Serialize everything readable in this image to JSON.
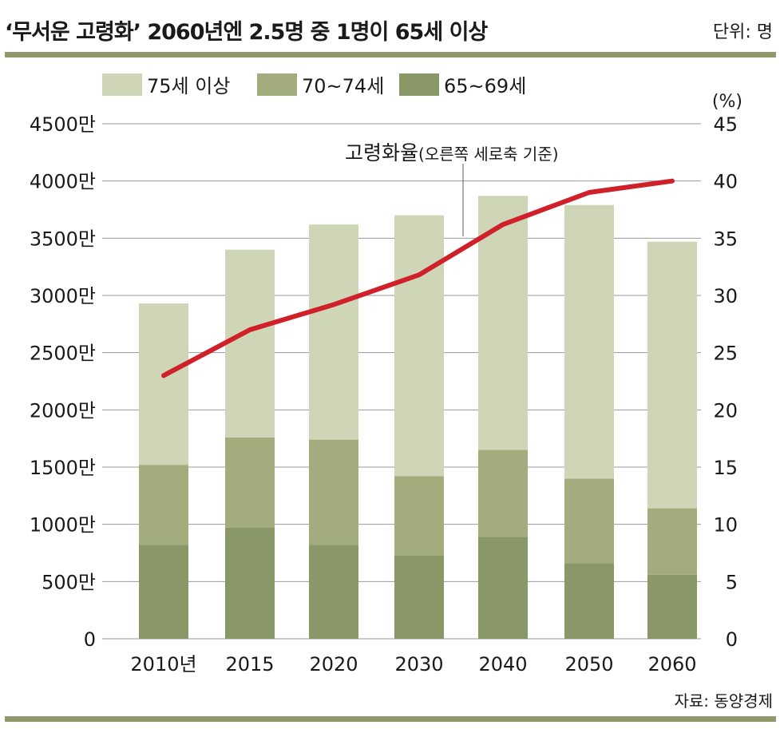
{
  "header": {
    "title": "‘무서운 고령화’ 2060년엔 2.5명 중 1명이 65세 이상",
    "unit": "단위: 명"
  },
  "footer": {
    "source": "자료: 동양경제"
  },
  "colors": {
    "age75plus": "#cfd5b7",
    "age70_74": "#a3ac7c",
    "age65_69": "#8a9868",
    "line": "#d0202a",
    "rule": "#8f9a6c"
  },
  "chart_data": {
    "type": "bar",
    "stacked": true,
    "categories": [
      "2010년",
      "2015",
      "2020",
      "2030",
      "2040",
      "2050",
      "2060"
    ],
    "series": [
      {
        "name": "65~69세",
        "values": [
          820,
          970,
          820,
          730,
          890,
          660,
          560
        ]
      },
      {
        "name": "70~74세",
        "values": [
          700,
          790,
          920,
          690,
          760,
          740,
          580
        ]
      },
      {
        "name": "75세 이상",
        "values": [
          1410,
          1640,
          1880,
          2280,
          2220,
          2390,
          2330
        ]
      }
    ],
    "legend": [
      "75세 이상",
      "70~74세",
      "65~69세"
    ],
    "legend_position": "top",
    "y_left": {
      "ticks": [
        "0",
        "500만",
        "1000만",
        "1500만",
        "2000만",
        "2500만",
        "3000만",
        "3500만",
        "4000만",
        "4500만"
      ],
      "range": [
        0,
        4500
      ]
    },
    "y_right": {
      "label": "(%)",
      "ticks": [
        "0",
        "5",
        "10",
        "15",
        "20",
        "25",
        "30",
        "35",
        "40",
        "45"
      ],
      "range": [
        0,
        45
      ]
    },
    "line_series": {
      "name": "고령화율",
      "annotation": "(오른쪽 세로축 기준)",
      "axis": "right",
      "values": [
        23,
        27,
        29.2,
        31.8,
        36.2,
        39,
        40
      ]
    },
    "grid": true
  }
}
